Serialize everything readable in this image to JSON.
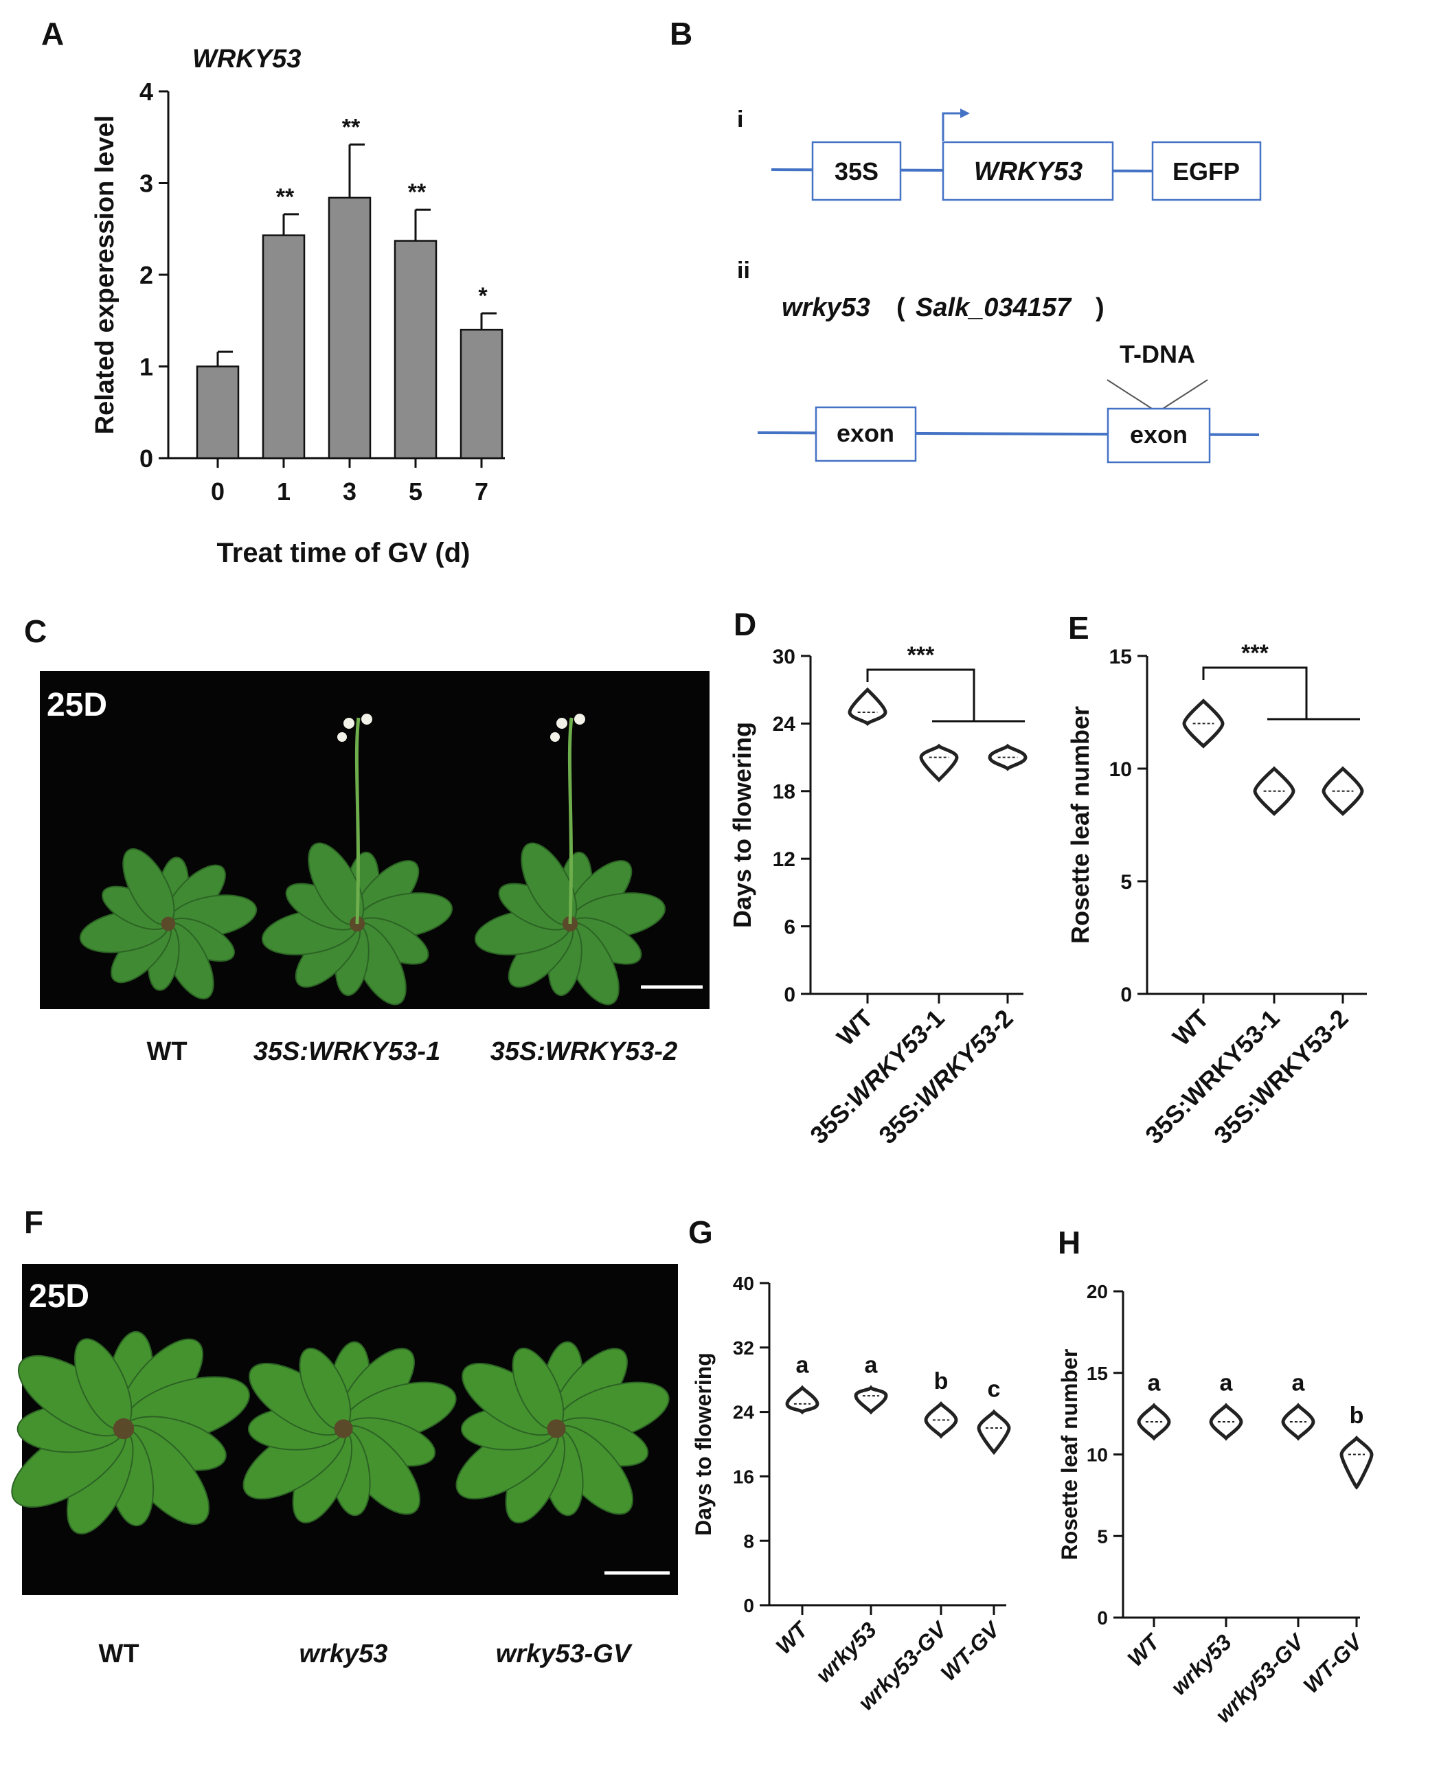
{
  "panels": {
    "A": "A",
    "B": "B",
    "C": "C",
    "D": "D",
    "E": "E",
    "F": "F",
    "G": "G",
    "H": "H"
  },
  "panel_B": {
    "i_label": "i",
    "ii_label": "ii",
    "box_35s": "35S",
    "box_gene": "WRKY53",
    "box_egfp": "EGFP",
    "mutant_name": "wrky53",
    "mutant_paren_open": "(",
    "mutant_line": "Salk_034157",
    "mutant_paren_close": ")",
    "tdna_label": "T-DNA",
    "exon1": "exon",
    "exon2": "exon"
  },
  "photo_C": {
    "days_label": "25D",
    "labels": [
      "WT",
      "35S:WRKY53-1",
      "35S:WRKY53-2"
    ],
    "background": "#050505",
    "leaf_color": "#3f8a33"
  },
  "photo_F": {
    "days_label": "25D",
    "labels": [
      "WT",
      "wrky53",
      "wrky53-GV"
    ],
    "background": "#050505",
    "leaf_color": "#45932f"
  },
  "chart_data": [
    {
      "panel": "A",
      "type": "bar",
      "title": "WRKY53",
      "xlabel": "Treat time of GV (d)",
      "ylabel": "Related experession level",
      "categories": [
        "0",
        "1",
        "3",
        "5",
        "7"
      ],
      "values": [
        1.0,
        2.43,
        2.84,
        2.37,
        1.4
      ],
      "errors": [
        0.16,
        0.23,
        0.58,
        0.34,
        0.18
      ],
      "significance": [
        "",
        "**",
        "**",
        "**",
        "*"
      ],
      "ylim": [
        0,
        4
      ],
      "yticks": [
        0,
        1,
        2,
        3,
        4
      ],
      "bar_color": "#8c8c8c"
    },
    {
      "panel": "D",
      "type": "violin",
      "categories": [
        "WT",
        "35S:WRKY53-1",
        "35S:WRKY53-2"
      ],
      "italic_part": "WRKY53-",
      "ylabel": "Days to flowering",
      "ylim": [
        0,
        30
      ],
      "yticks": [
        0,
        6,
        12,
        18,
        24,
        30
      ],
      "series": [
        {
          "min": 24,
          "max": 27,
          "median": 25
        },
        {
          "min": 19,
          "max": 22,
          "median": 21
        },
        {
          "min": 20,
          "max": 22,
          "median": 21
        }
      ],
      "significance": "***"
    },
    {
      "panel": "E",
      "type": "violin",
      "categories": [
        "WT",
        "35S:WRKY53-1",
        "35S:WRKY53-2"
      ],
      "ylabel": "Rosette leaf number",
      "ylim": [
        0,
        15
      ],
      "yticks": [
        0,
        5,
        10,
        15
      ],
      "series": [
        {
          "min": 11,
          "max": 13,
          "median": 12
        },
        {
          "min": 8,
          "max": 10,
          "median": 9
        },
        {
          "min": 8,
          "max": 10,
          "median": 9
        }
      ],
      "significance": "***"
    },
    {
      "panel": "G",
      "type": "violin",
      "categories": [
        "WT",
        "wrky53",
        "wrky53-GV",
        "WT-GV"
      ],
      "ylabel": "Days to flowering",
      "ylim": [
        0,
        40
      ],
      "yticks": [
        0,
        8,
        16,
        24,
        32,
        40
      ],
      "series": [
        {
          "min": 24,
          "max": 27,
          "median": 25
        },
        {
          "min": 24,
          "max": 27,
          "median": 26
        },
        {
          "min": 21,
          "max": 25,
          "median": 23
        },
        {
          "min": 19,
          "max": 24,
          "median": 22
        }
      ],
      "letters": [
        "a",
        "a",
        "b",
        "c"
      ]
    },
    {
      "panel": "H",
      "type": "violin",
      "categories": [
        "WT",
        "wrky53",
        "wrky53-GV",
        "WT-GV"
      ],
      "ylabel": "Rosette leaf number",
      "ylim": [
        0,
        20
      ],
      "yticks": [
        0,
        5,
        10,
        15,
        20
      ],
      "series": [
        {
          "min": 11,
          "max": 13,
          "median": 12
        },
        {
          "min": 11,
          "max": 13,
          "median": 12
        },
        {
          "min": 11,
          "max": 13,
          "median": 12
        },
        {
          "min": 8,
          "max": 11,
          "median": 10
        }
      ],
      "letters": [
        "a",
        "a",
        "a",
        "b"
      ]
    }
  ]
}
